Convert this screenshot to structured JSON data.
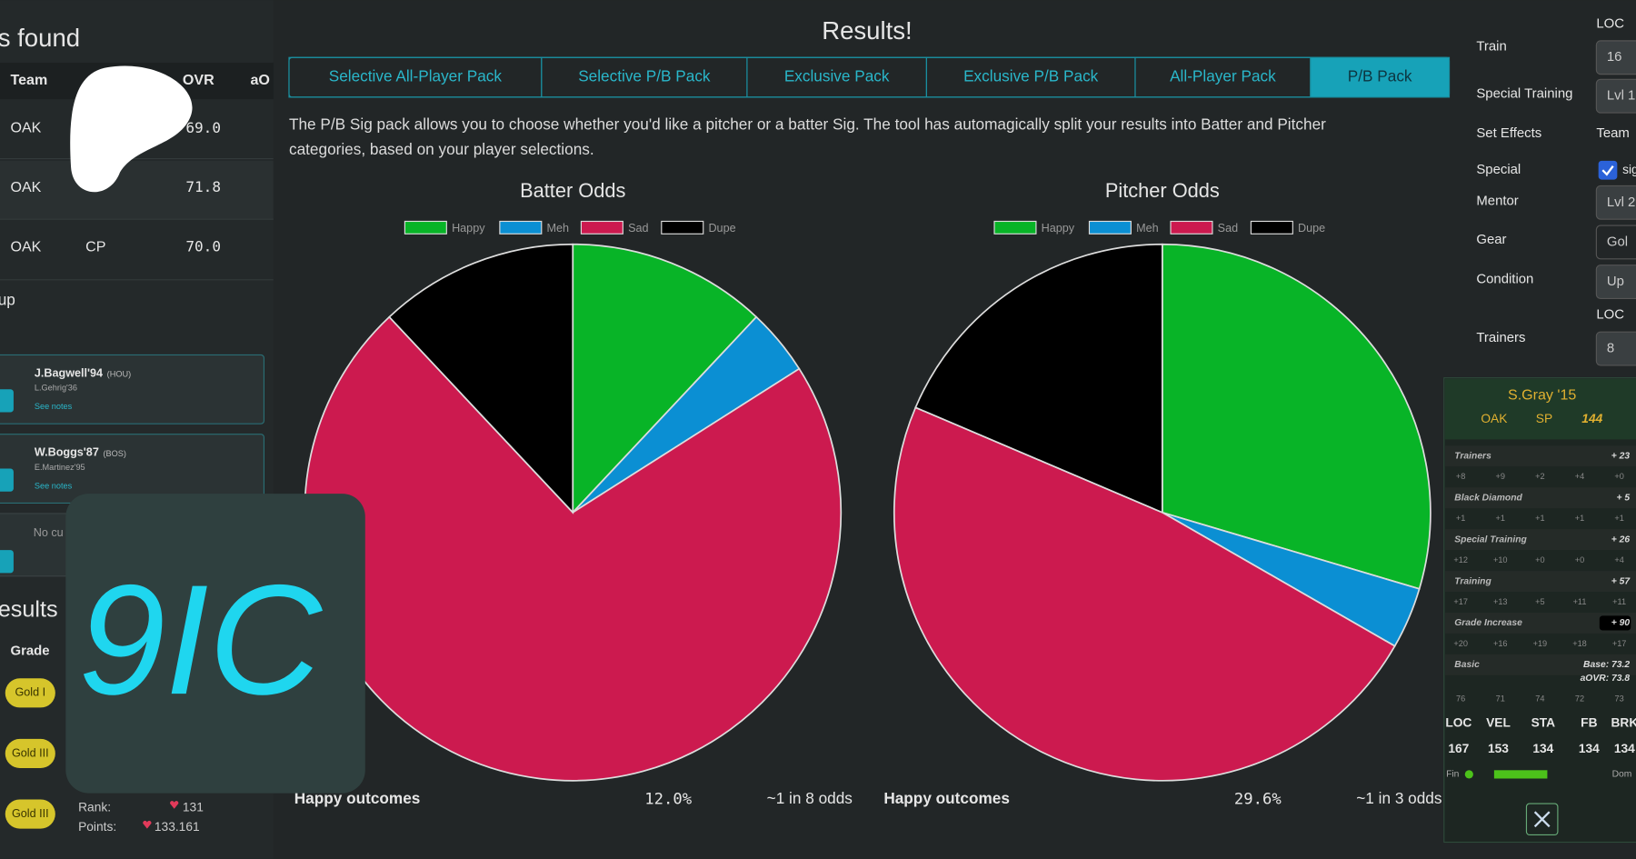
{
  "left_panel": {
    "title": "s found",
    "columns": [
      "Team",
      "OVR",
      "aO"
    ],
    "rows": [
      [
        "OAK",
        "69.0"
      ],
      [
        "OAK",
        "71.8"
      ],
      [
        "OAK",
        "CP",
        "70.0"
      ]
    ],
    "group_label": "up",
    "cards": [
      {
        "name": "J.Bagwell'94",
        "team": "(HOU)",
        "sub": "L.Gehrig'36",
        "note": "See notes"
      },
      {
        "name": "W.Boggs'87",
        "team": "(BOS)",
        "sub": "E.Martinez'95",
        "note": "See notes"
      }
    ],
    "empty_card": "No cu",
    "results_title": "esults",
    "grade_header": "Grade",
    "grades": [
      "Gold I",
      "Gold III",
      "Gold III"
    ],
    "rank_label": "Rank:",
    "rank": "131",
    "points_label": "Points:",
    "points": "133.161"
  },
  "logo": "9IC",
  "header": {
    "title": "Results!"
  },
  "tabs": [
    "Selective All-Player Pack",
    "Selective P/B Pack",
    "Exclusive Pack",
    "Exclusive P/B Pack",
    "All-Player Pack",
    "P/B Pack"
  ],
  "active_tab": 5,
  "description": [
    "The P/B Sig pack allows you to choose whether you'd like a pitcher or a batter Sig. The tool has automagically split your results into Batter and Pitcher",
    "categories, based on your player selections."
  ],
  "charts": [
    {
      "type": "pie",
      "title": "Batter Odds",
      "categories": [
        "Happy",
        "Meh",
        "Sad",
        "Dupe"
      ],
      "colors": [
        "#08b427",
        "#0b8fd3",
        "#cc1a4f",
        "#000000"
      ],
      "values": [
        12,
        4,
        72,
        12
      ],
      "summary_label": "Happy outcomes",
      "summary_value": "12.0%",
      "summary_odds": "~1 in 8 odds"
    },
    {
      "type": "pie",
      "title": "Pitcher Odds",
      "categories": [
        "Happy",
        "Meh",
        "Sad",
        "Dupe"
      ],
      "colors": [
        "#08b427",
        "#0b8fd3",
        "#cc1a4f",
        "#000000"
      ],
      "values": [
        29.6,
        3.7,
        48.1,
        18.6
      ],
      "summary_label": "Happy outcomes",
      "summary_value": "29.6%",
      "summary_odds": "~1 in 3 odds"
    }
  ],
  "settings": {
    "loc_header": "LOC",
    "items": [
      {
        "label": "Train",
        "value": "16"
      },
      {
        "label": "Special Training",
        "value": "Lvl 1"
      },
      {
        "label": "Set Effects",
        "value": "Team"
      },
      {
        "label": "Special",
        "value": "sig"
      },
      {
        "label": "Mentor",
        "value": "Lvl 2"
      },
      {
        "label": "Gear",
        "value": "Gol"
      },
      {
        "label": "Condition",
        "value": "Up"
      },
      {
        "label": "Trainers",
        "value": "8"
      }
    ],
    "loc_header_2": "LOC"
  },
  "card": {
    "name": "S.Gray '15",
    "team": "OAK",
    "position": "SP",
    "rating": "144",
    "rows": [
      {
        "label": "Trainers",
        "value": "+ 23",
        "cells": [
          "+8",
          "+9",
          "+2",
          "+4",
          "+0"
        ]
      },
      {
        "label": "Black Diamond",
        "value": "+ 5",
        "cells": [
          "+1",
          "+1",
          "+1",
          "+1",
          "+1"
        ]
      },
      {
        "label": "Special Training",
        "value": "+ 26",
        "cells": [
          "+12",
          "+10",
          "+0",
          "+0",
          "+4"
        ]
      },
      {
        "label": "Training",
        "value": "+ 57",
        "cells": [
          "+17",
          "+13",
          "+5",
          "+11",
          "+11"
        ]
      },
      {
        "label": "Grade Increase",
        "value": "+ 90",
        "cells": [
          "+20",
          "+16",
          "+19",
          "+18",
          "+17"
        ]
      },
      {
        "label": "Basic",
        "value": "Base: 73.2",
        "cells": [
          "76",
          "71",
          "74",
          "72",
          "73"
        ]
      }
    ],
    "aovr": "aOVR: 73.8",
    "stat_headers": [
      "LOC",
      "VEL",
      "STA",
      "FB",
      "BRK"
    ],
    "stat_values": [
      "167",
      "153",
      "134",
      "134",
      "134"
    ],
    "fin": "Fin",
    "dom": "Dom"
  }
}
